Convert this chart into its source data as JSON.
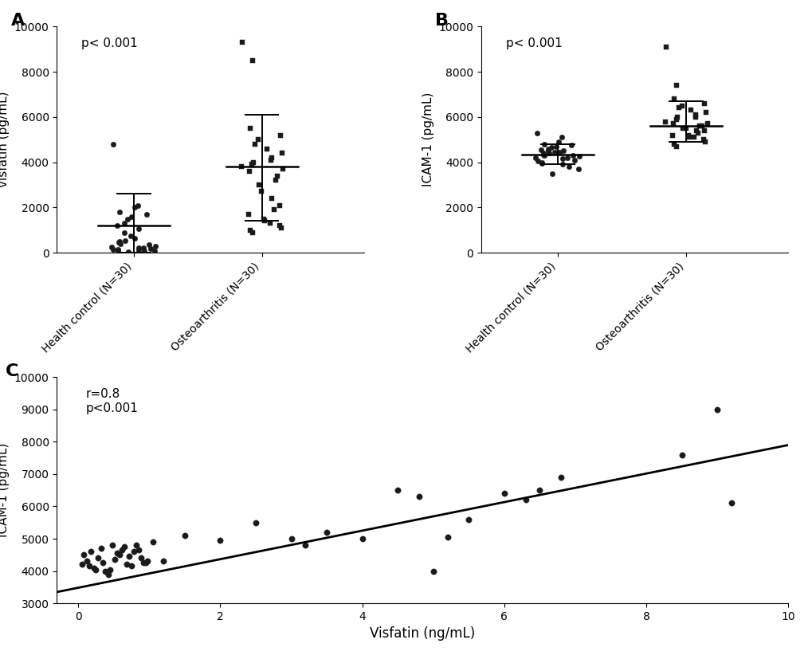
{
  "panel_A": {
    "label": "A",
    "ylabel": "visfatin (pg/mL)",
    "ylim": [
      0,
      10000
    ],
    "yticks": [
      0,
      2000,
      4000,
      6000,
      8000,
      10000
    ],
    "ptext": "p< 0.001",
    "groups": {
      "Health control (N=30)": {
        "marker": "o",
        "median": 1200,
        "sd_low": 0,
        "sd_high": 2600,
        "points": [
          50,
          70,
          90,
          100,
          120,
          140,
          160,
          180,
          200,
          230,
          260,
          300,
          350,
          400,
          450,
          500,
          550,
          650,
          750,
          900,
          1050,
          1200,
          1300,
          1500,
          1600,
          1700,
          1800,
          2000,
          2100,
          4800
        ]
      },
      "Osteoarthritis (N=30)": {
        "marker": "s",
        "median": 3800,
        "sd_low": 1400,
        "sd_high": 6100,
        "points": [
          900,
          1000,
          1100,
          1200,
          1300,
          1400,
          1500,
          1700,
          1900,
          2100,
          2400,
          2700,
          3000,
          3200,
          3400,
          3600,
          3700,
          3800,
          3900,
          4000,
          4100,
          4200,
          4400,
          4600,
          4800,
          5000,
          5200,
          5500,
          8500,
          9300
        ]
      }
    }
  },
  "panel_B": {
    "label": "B",
    "ylabel": "ICAM-1 (pg/mL)",
    "ylim": [
      0,
      10000
    ],
    "yticks": [
      0,
      2000,
      4000,
      6000,
      8000,
      10000
    ],
    "ptext": "p< 0.001",
    "groups": {
      "Health control (N=30)": {
        "marker": "o",
        "median": 4350,
        "sd_low": 3900,
        "sd_high": 4800,
        "points": [
          3500,
          3700,
          3800,
          3900,
          3950,
          4000,
          4050,
          4100,
          4150,
          4200,
          4200,
          4250,
          4300,
          4300,
          4350,
          4400,
          4400,
          4450,
          4450,
          4500,
          4500,
          4550,
          4600,
          4650,
          4700,
          4750,
          4800,
          4900,
          5100,
          5300
        ]
      },
      "Osteoarthritis (N=30)": {
        "marker": "s",
        "median": 5600,
        "sd_low": 4900,
        "sd_high": 6700,
        "points": [
          4700,
          4800,
          4900,
          5000,
          5100,
          5100,
          5200,
          5200,
          5300,
          5400,
          5400,
          5500,
          5500,
          5600,
          5600,
          5700,
          5700,
          5800,
          5900,
          6000,
          6000,
          6100,
          6200,
          6300,
          6400,
          6500,
          6600,
          6800,
          7400,
          9100
        ]
      }
    }
  },
  "panel_C": {
    "label": "C",
    "xlabel": "Visfatin (ng/mL)",
    "ylabel": "ICAM-1 (pg/mL)",
    "xlim": [
      -0.3,
      10
    ],
    "ylim": [
      3000,
      10000
    ],
    "xticks": [
      0,
      2,
      4,
      6,
      8,
      10
    ],
    "yticks": [
      3000,
      4000,
      5000,
      6000,
      7000,
      8000,
      9000,
      10000
    ],
    "annotation": "r=0.8\np<0.001",
    "regression_x0": -0.3,
    "regression_x1": 10,
    "regression_y0": 3350,
    "regression_y1": 7900,
    "scatter_x": [
      0.05,
      0.08,
      0.12,
      0.18,
      0.22,
      0.28,
      0.32,
      0.38,
      0.42,
      0.48,
      0.52,
      0.58,
      0.62,
      0.68,
      0.72,
      0.78,
      0.82,
      0.88,
      0.92,
      0.98,
      0.15,
      0.25,
      0.35,
      0.45,
      0.55,
      0.65,
      0.75,
      0.85,
      0.95,
      1.05,
      1.2,
      1.5,
      2.0,
      2.5,
      3.0,
      3.2,
      4.0,
      4.5,
      5.0,
      5.5,
      6.0,
      6.5,
      9.0
    ],
    "scatter_y": [
      4200,
      4500,
      4300,
      4600,
      4100,
      4400,
      4700,
      4000,
      3900,
      4800,
      4350,
      4500,
      4650,
      4200,
      4450,
      4600,
      4800,
      4400,
      4250,
      4300,
      4150,
      4050,
      4250,
      4050,
      4550,
      4750,
      4150,
      4650,
      4250,
      4900,
      4300,
      5100,
      4950,
      5500,
      5000,
      4800,
      5000,
      6500,
      4000,
      5600,
      6400,
      6500,
      9000
    ],
    "scatter_extra_x": [
      3.5,
      4.8,
      5.2,
      6.3,
      6.8,
      8.5,
      9.2
    ],
    "scatter_extra_y": [
      5200,
      6300,
      5050,
      6200,
      6900,
      7600,
      6100
    ]
  },
  "bg_color": "#ffffff",
  "text_color": "#000000",
  "marker_color": "#1a1a1a",
  "line_color": "#000000",
  "font_size": 11,
  "label_font_size": 16
}
